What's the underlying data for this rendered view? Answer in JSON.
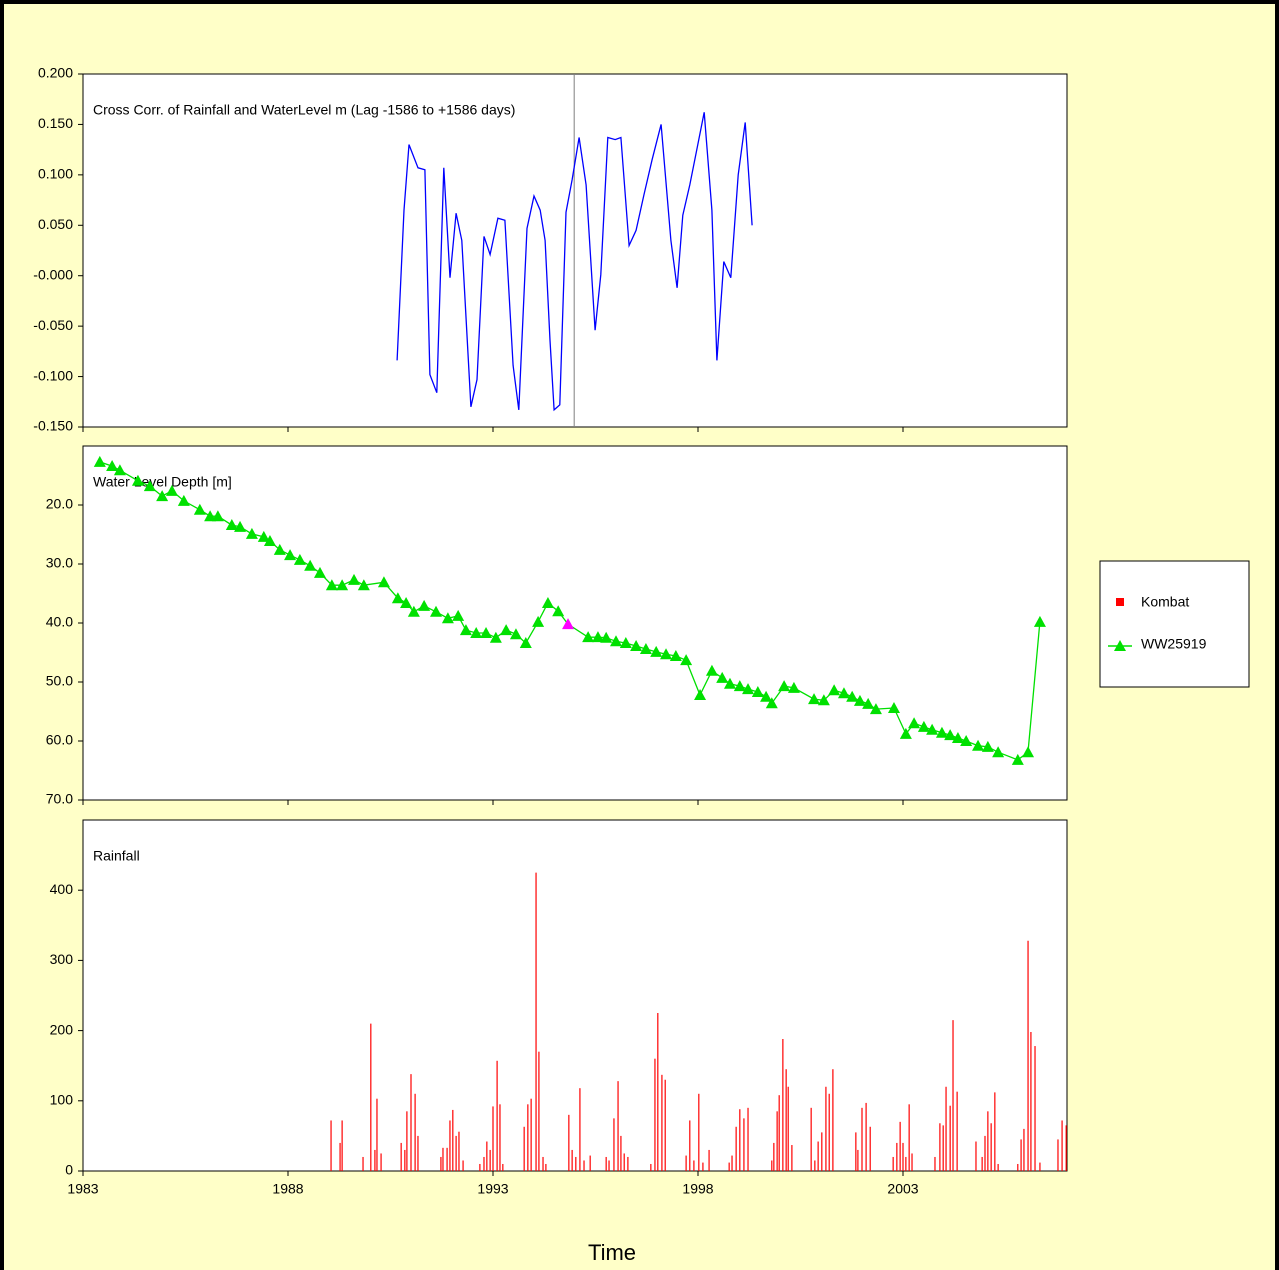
{
  "chart_data": [
    {
      "type": "line",
      "title": "Cross Corr. of Rainfall and WaterLevel m (Lag -1586 to +1586 days)",
      "xlim": [
        1983,
        2007
      ],
      "xticks": [
        1983,
        1988,
        1993,
        1998,
        2003
      ],
      "ylim": [
        -0.15,
        0.2
      ],
      "yticks": [
        {
          "value": 0.2,
          "label": "0.200"
        },
        {
          "value": 0.15,
          "label": "0.150"
        },
        {
          "value": 0.1,
          "label": "0.100"
        },
        {
          "value": 0.05,
          "label": "0.050"
        },
        {
          "value": 0,
          "label": "-0.000"
        },
        {
          "value": -0.05,
          "label": "-0.050"
        },
        {
          "value": -0.1,
          "label": "-0.100"
        },
        {
          "value": -0.15,
          "label": "-0.150"
        }
      ],
      "zero_lag_x": 1994.98,
      "zero_lag_color": "#808080",
      "series": [
        {
          "color": "#0000ff",
          "x": [
            1990.66,
            1990.83,
            1990.95,
            1991.17,
            1991.34,
            1991.46,
            1991.63,
            1991.8,
            1991.95,
            1992.1,
            1992.24,
            1992.46,
            1992.61,
            1992.78,
            1992.93,
            1993.12,
            1993.29,
            1993.49,
            1993.63,
            1993.83,
            1994.0,
            1994.15,
            1994.27,
            1994.39,
            1994.49,
            1994.63,
            1994.78,
            1994.93,
            1995.1,
            1995.27,
            1995.49,
            1995.63,
            1995.8,
            1995.98,
            1996.12,
            1996.32,
            1996.49,
            1996.68,
            1996.88,
            1997.1,
            1997.34,
            1997.49,
            1997.63,
            1997.8,
            1997.98,
            1998.15,
            1998.34,
            1998.46,
            1998.63,
            1998.8,
            1998.98,
            1999.15,
            1999.32
          ],
          "values": [
            -0.084,
            0.065,
            0.13,
            0.107,
            0.105,
            -0.098,
            -0.116,
            0.107,
            -0.002,
            0.062,
            0.035,
            -0.13,
            -0.103,
            0.039,
            0.021,
            0.057,
            0.055,
            -0.089,
            -0.133,
            0.047,
            0.079,
            0.065,
            0.035,
            -0.064,
            -0.133,
            -0.128,
            0.063,
            0.095,
            0.137,
            0.09,
            -0.054,
            0.001,
            0.137,
            0.135,
            0.137,
            0.03,
            0.045,
            0.08,
            0.115,
            0.15,
            0.035,
            -0.012,
            0.06,
            0.09,
            0.127,
            0.162,
            0.065,
            -0.084,
            0.014,
            -0.002,
            0.1,
            0.152,
            0.05
          ]
        }
      ]
    },
    {
      "type": "line",
      "title": "Water Level Depth [m]",
      "y_inverted": true,
      "xlim": [
        1983,
        2007
      ],
      "xticks": [
        1983,
        1988,
        1993,
        1998,
        2003
      ],
      "ylim": [
        10,
        70
      ],
      "yticks": [
        {
          "value": 20,
          "label": "20.0"
        },
        {
          "value": 30,
          "label": "30.0"
        },
        {
          "value": 40,
          "label": "40.0"
        },
        {
          "value": 50,
          "label": "50.0"
        },
        {
          "value": 60,
          "label": "60.0"
        },
        {
          "value": 70,
          "label": "70.0"
        }
      ],
      "series": [
        {
          "name": "WW25919",
          "color": "#00e000",
          "marker": "triangle",
          "highlight": {
            "index": 43,
            "color": "#ff00ff"
          },
          "x": [
            1983.41,
            1983.71,
            1983.9,
            1984.34,
            1984.63,
            1984.93,
            1985.17,
            1985.46,
            1985.85,
            1986.1,
            1986.29,
            1986.63,
            1986.83,
            1987.12,
            1987.41,
            1987.56,
            1987.8,
            1988.05,
            1988.29,
            1988.54,
            1988.78,
            1989.07,
            1989.32,
            1989.61,
            1989.85,
            1990.34,
            1990.68,
            1990.88,
            1991.07,
            1991.32,
            1991.61,
            1991.9,
            1992.15,
            1992.34,
            1992.59,
            1992.83,
            1993.07,
            1993.32,
            1993.56,
            1993.8,
            1994.1,
            1994.34,
            1994.59,
            1994.83,
            1995.32,
            1995.56,
            1995.76,
            1996.0,
            1996.24,
            1996.49,
            1996.73,
            1996.98,
            1997.22,
            1997.46,
            1997.71,
            1998.05,
            1998.34,
            1998.59,
            1998.78,
            1999.02,
            1999.22,
            1999.46,
            1999.66,
            1999.8,
            2000.1,
            2000.34,
            2000.83,
            2001.07,
            2001.32,
            2001.56,
            2001.76,
            2001.95,
            2002.15,
            2002.34,
            2002.78,
            2003.07,
            2003.27,
            2003.51,
            2003.71,
            2003.95,
            2004.15,
            2004.34,
            2004.54,
            2004.83,
            2005.07,
            2005.32,
            2005.8,
            2006.05,
            2006.34
          ],
          "values": [
            12.7,
            13.4,
            14.1,
            15.9,
            16.8,
            18.5,
            17.6,
            19.3,
            20.8,
            21.9,
            21.9,
            23.4,
            23.7,
            24.9,
            25.4,
            26.1,
            27.6,
            28.5,
            29.3,
            30.3,
            31.5,
            33.6,
            33.6,
            32.7,
            33.6,
            33.1,
            35.8,
            36.6,
            38.1,
            37.1,
            38.1,
            39.2,
            38.8,
            41.2,
            41.7,
            41.7,
            42.5,
            41.2,
            41.9,
            43.4,
            39.8,
            36.6,
            38.0,
            40.2,
            42.4,
            42.4,
            42.5,
            43.1,
            43.4,
            43.9,
            44.4,
            44.9,
            45.3,
            45.6,
            46.3,
            52.2,
            48.1,
            49.3,
            50.3,
            50.7,
            51.2,
            51.7,
            52.5,
            53.6,
            50.7,
            51.0,
            52.9,
            53.1,
            51.4,
            51.9,
            52.5,
            53.2,
            53.7,
            54.6,
            54.4,
            58.8,
            57.0,
            57.6,
            58.1,
            58.6,
            59.0,
            59.5,
            60.0,
            60.8,
            61.0,
            61.9,
            63.2,
            61.9,
            39.8
          ]
        }
      ]
    },
    {
      "type": "bar",
      "title": "Rainfall",
      "xlabel": "Time",
      "xlim": [
        1983,
        2007
      ],
      "xticks": [
        1983,
        1988,
        1993,
        1998,
        2003
      ],
      "ylim": [
        0,
        500
      ],
      "yticks": [
        0,
        100,
        200,
        300,
        400
      ],
      "series": [
        {
          "name": "Kombat",
          "color": "#ff0000",
          "x": [
            1989.05,
            1989.27,
            1989.32,
            1989.83,
            1990.02,
            1990.12,
            1990.17,
            1990.27,
            1990.76,
            1990.85,
            1990.9,
            1991.0,
            1991.1,
            1991.17,
            1991.73,
            1991.78,
            1991.88,
            1991.95,
            1992.02,
            1992.1,
            1992.17,
            1992.27,
            1992.68,
            1992.78,
            1992.85,
            1992.93,
            1993.0,
            1993.1,
            1993.17,
            1993.24,
            1993.76,
            1993.85,
            1993.93,
            1994.05,
            1994.12,
            1994.22,
            1994.29,
            1994.85,
            1994.93,
            1995.02,
            1995.12,
            1995.22,
            1995.37,
            1995.76,
            1995.83,
            1995.95,
            1996.05,
            1996.12,
            1996.2,
            1996.29,
            1996.85,
            1996.95,
            1997.02,
            1997.12,
            1997.2,
            1997.71,
            1997.8,
            1997.9,
            1998.02,
            1998.12,
            1998.27,
            1998.76,
            1998.83,
            1998.93,
            1999.02,
            1999.12,
            1999.22,
            1999.8,
            1999.85,
            1999.93,
            1999.98,
            2000.07,
            2000.15,
            2000.2,
            2000.29,
            2000.76,
            2000.85,
            2000.93,
            2001.02,
            2001.12,
            2001.2,
            2001.29,
            2001.85,
            2001.9,
            2002.0,
            2002.1,
            2002.2,
            2002.76,
            2002.85,
            2002.93,
            2003.0,
            2003.07,
            2003.15,
            2003.22,
            2003.78,
            2003.9,
            2003.98,
            2004.05,
            2004.15,
            2004.22,
            2004.32,
            2004.78,
            2004.93,
            2005.0,
            2005.07,
            2005.15,
            2005.24,
            2005.32,
            2005.8,
            2005.88,
            2005.95,
            2006.05,
            2006.12,
            2006.22,
            2006.34,
            2006.78,
            2006.88,
            2006.98
          ],
          "values": [
            72,
            40,
            72,
            20,
            210,
            30,
            103,
            25,
            40,
            30,
            85,
            138,
            110,
            50,
            20,
            33,
            33,
            72,
            87,
            50,
            56,
            15,
            10,
            20,
            42,
            30,
            92,
            157,
            95,
            10,
            63,
            95,
            103,
            425,
            170,
            20,
            10,
            80,
            30,
            20,
            118,
            15,
            22,
            20,
            15,
            75,
            128,
            50,
            25,
            20,
            10,
            160,
            225,
            137,
            130,
            22,
            72,
            15,
            110,
            12,
            30,
            12,
            22,
            63,
            88,
            75,
            90,
            15,
            40,
            85,
            108,
            188,
            145,
            120,
            37,
            90,
            15,
            42,
            55,
            120,
            110,
            145,
            55,
            30,
            90,
            97,
            63,
            20,
            40,
            70,
            40,
            20,
            95,
            25,
            20,
            68,
            65,
            120,
            93,
            215,
            113,
            42,
            20,
            50,
            85,
            68,
            112,
            10,
            10,
            45,
            60,
            328,
            198,
            178,
            12,
            45,
            72,
            65
          ]
        }
      ]
    }
  ]
}
